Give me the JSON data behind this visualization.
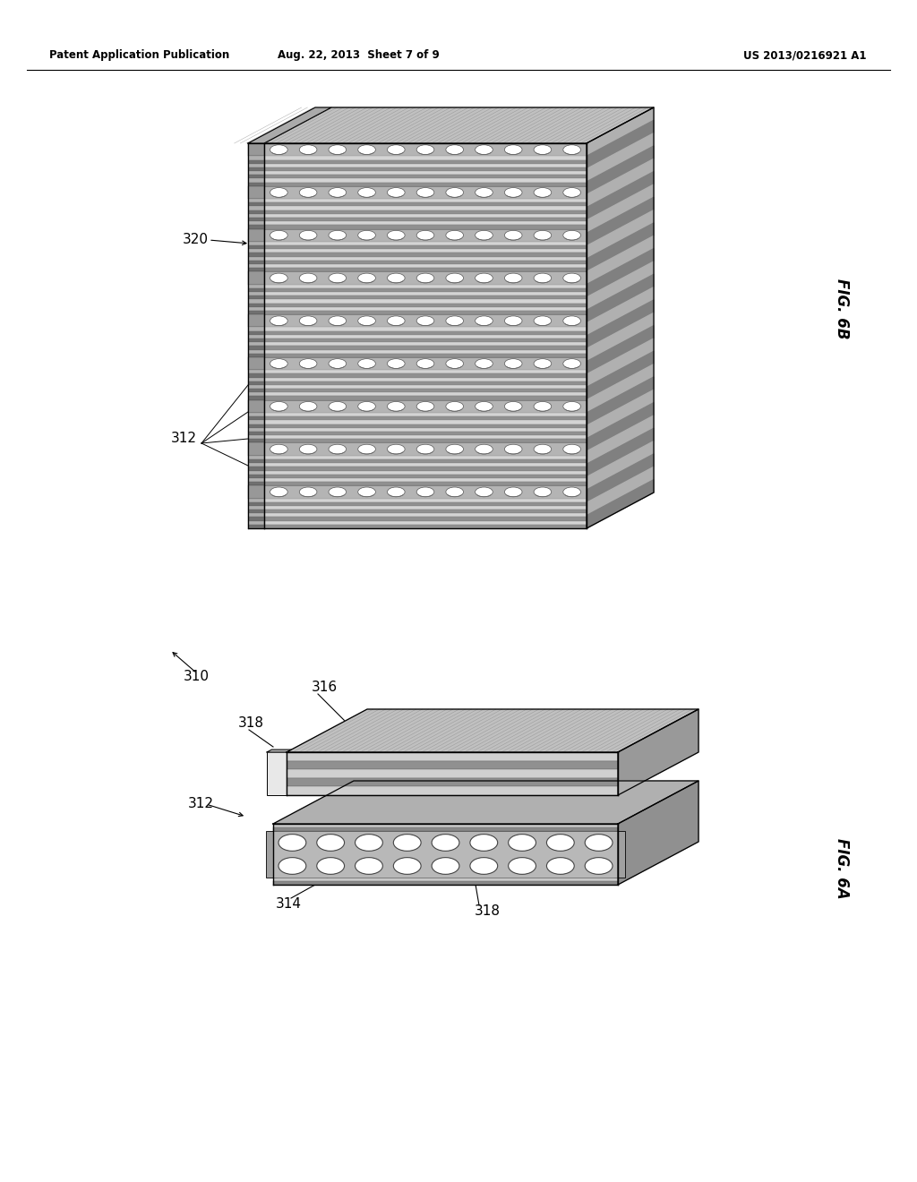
{
  "header_left": "Patent Application Publication",
  "header_mid": "Aug. 22, 2013  Sheet 7 of 9",
  "header_right": "US 2013/0216921 A1",
  "fig6b_label": "FIG. 6B",
  "fig6a_label": "FIG. 6A",
  "background": "#ffffff",
  "label_320": "320",
  "label_312_top": "312",
  "label_310": "310",
  "label_316": "316",
  "label_318_top": "318",
  "label_312_bot": "312",
  "label_314": "314",
  "label_318_bot": "318"
}
